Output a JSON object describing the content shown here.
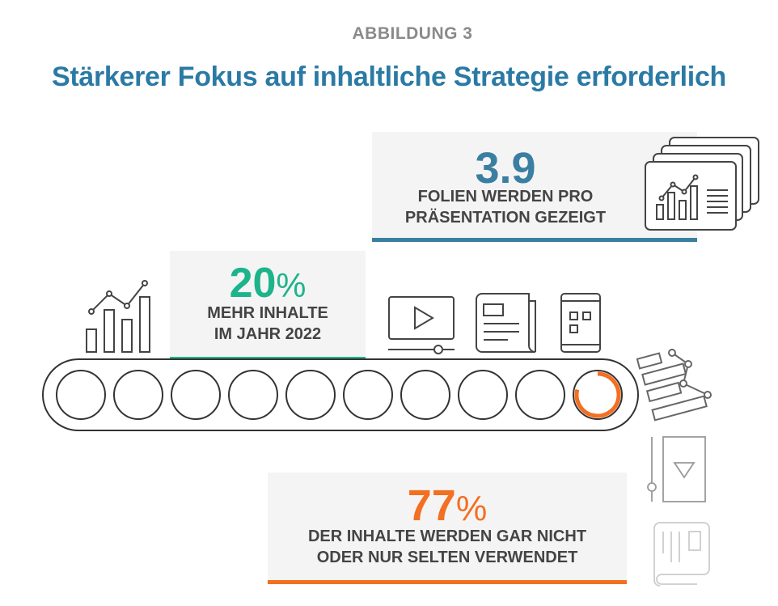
{
  "header": {
    "kicker": "ABBILDUNG 3",
    "title": "Stärkerer Fokus auf inhaltliche Strategie erforderlich"
  },
  "stats": [
    {
      "value": "3.9",
      "unit": "",
      "line1": "FOLIEN WERDEN PRO",
      "line2": "PRÄSENTATION GEZEIGT",
      "color": "#3a7fa2"
    },
    {
      "value": "20",
      "unit": "%",
      "line1": "MEHR INHALTE",
      "line2": "IM JAHR 2022",
      "color": "#1db38b"
    },
    {
      "value": "77",
      "unit": "%",
      "line1": "DER INHALTE WERDEN GAR NICHT",
      "line2": "ODER NUR SELTEN VERWENDET",
      "color": "#f36f21"
    }
  ],
  "conveyor": {
    "slots": 10,
    "highlighted_slot": 10,
    "highlight_color": "#f36f21"
  }
}
